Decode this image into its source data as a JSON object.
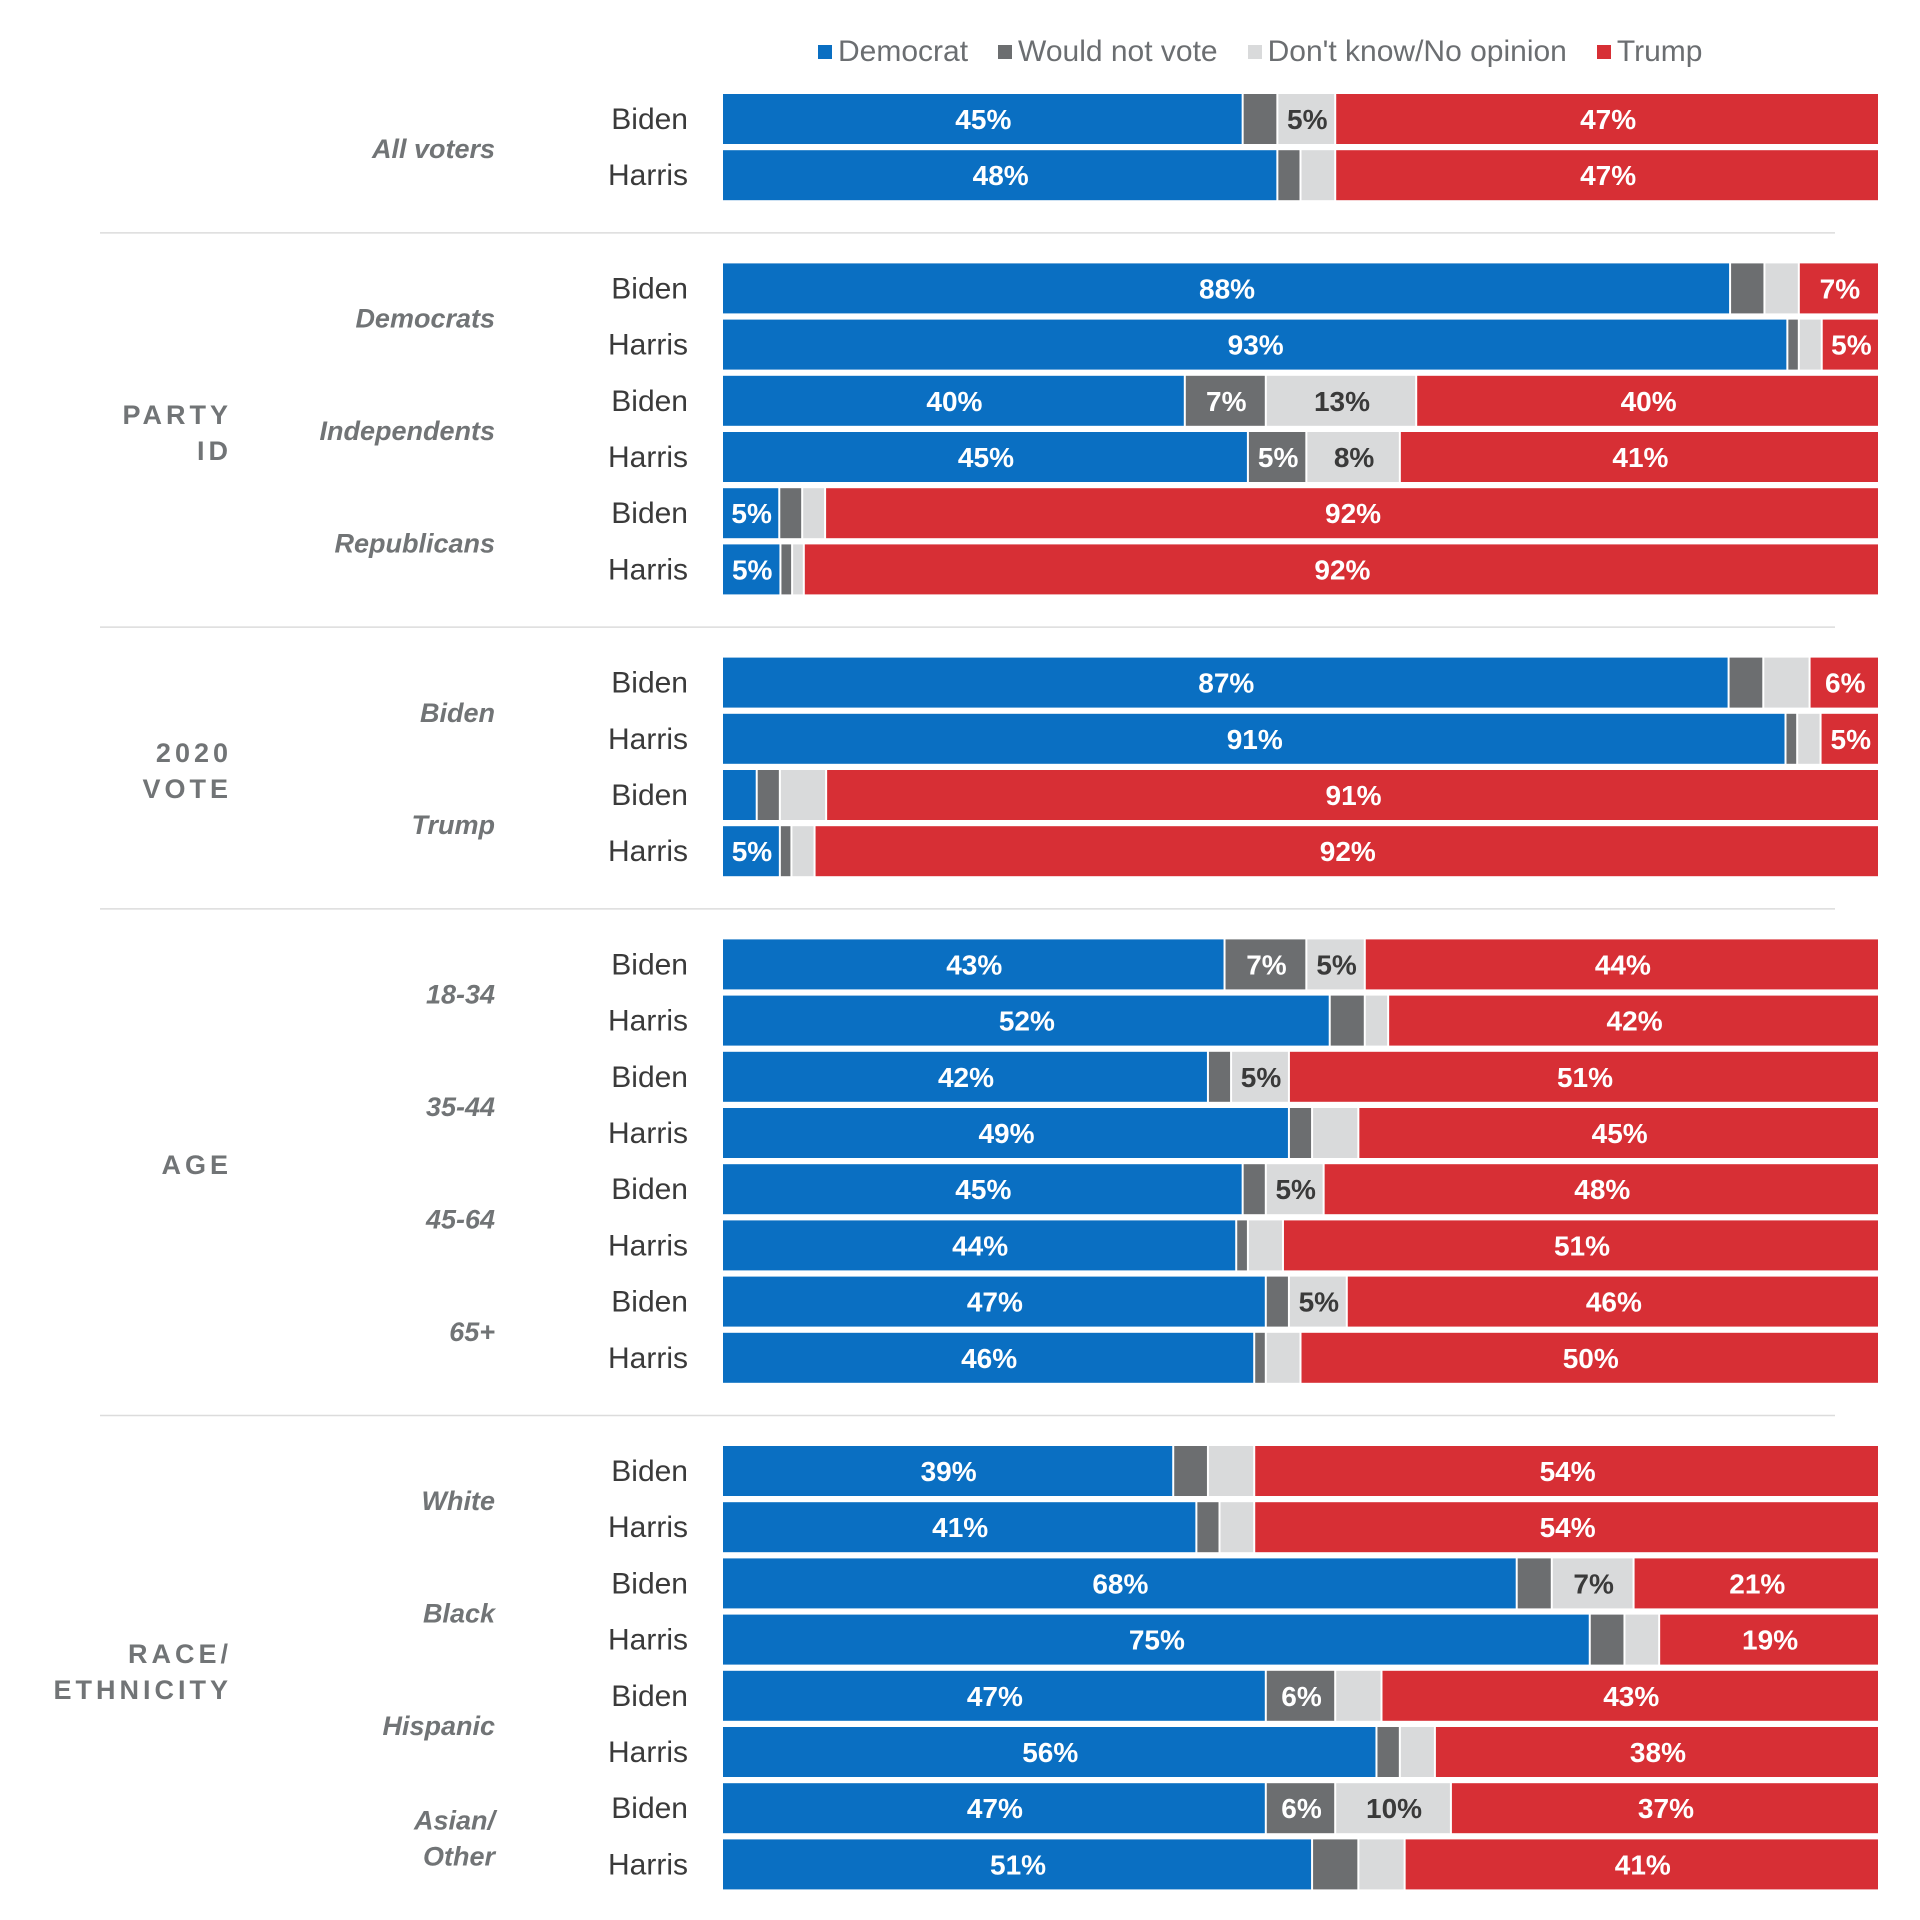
{
  "chart_data": {
    "type": "bar",
    "stacked": true,
    "orientation": "horizontal",
    "xlim": [
      0,
      100
    ],
    "legend_position": "top",
    "series": [
      {
        "key": "dem",
        "name": "Democrat",
        "color": "#0a6fc2"
      },
      {
        "key": "wnv",
        "name": "Would not vote",
        "color": "#6c6e70"
      },
      {
        "key": "dk",
        "name": "Don't know/No opinion",
        "color": "#d9dadb"
      },
      {
        "key": "trump",
        "name": "Trump",
        "color": "#d72f35"
      }
    ],
    "sections": [
      {
        "label": "",
        "groups": [
          {
            "label": "All voters",
            "rows": [
              {
                "candidate": "Biden",
                "dem": 45,
                "wnv": 3,
                "dk": 5,
                "trump": 47,
                "labels": [
                  "45%",
                  "",
                  "5%",
                  "47%"
                ]
              },
              {
                "candidate": "Harris",
                "dem": 48,
                "wnv": 2,
                "dk": 3,
                "trump": 47,
                "labels": [
                  "48%",
                  "",
                  "",
                  "47%"
                ]
              }
            ]
          }
        ]
      },
      {
        "label": "PARTY ID",
        "groups": [
          {
            "label": "Democrats",
            "rows": [
              {
                "candidate": "Biden",
                "dem": 88,
                "wnv": 3,
                "dk": 3,
                "trump": 7,
                "labels": [
                  "88%",
                  "",
                  "",
                  "7%"
                ]
              },
              {
                "candidate": "Harris",
                "dem": 93,
                "wnv": 1,
                "dk": 2,
                "trump": 5,
                "labels": [
                  "93%",
                  "",
                  "",
                  "5%"
                ]
              }
            ]
          },
          {
            "label": "Independents",
            "rows": [
              {
                "candidate": "Biden",
                "dem": 40,
                "wnv": 7,
                "dk": 13,
                "trump": 40,
                "labels": [
                  "40%",
                  "7%",
                  "13%",
                  "40%"
                ]
              },
              {
                "candidate": "Harris",
                "dem": 45,
                "wnv": 5,
                "dk": 8,
                "trump": 41,
                "labels": [
                  "45%",
                  "5%",
                  "8%",
                  "41%"
                ]
              }
            ]
          },
          {
            "label": "Republicans",
            "rows": [
              {
                "candidate": "Biden",
                "dem": 5,
                "wnv": 2,
                "dk": 2,
                "trump": 92,
                "labels": [
                  "5%",
                  "",
                  "",
                  "92%"
                ]
              },
              {
                "candidate": "Harris",
                "dem": 5,
                "wnv": 1,
                "dk": 1,
                "trump": 92,
                "labels": [
                  "5%",
                  "",
                  "",
                  "92%"
                ]
              }
            ]
          }
        ]
      },
      {
        "label": "2020 VOTE",
        "groups": [
          {
            "label": "Biden",
            "rows": [
              {
                "candidate": "Biden",
                "dem": 87,
                "wnv": 3,
                "dk": 4,
                "trump": 6,
                "labels": [
                  "87%",
                  "",
                  "",
                  "6%"
                ]
              },
              {
                "candidate": "Harris",
                "dem": 91,
                "wnv": 1,
                "dk": 2,
                "trump": 5,
                "labels": [
                  "91%",
                  "",
                  "",
                  "5%"
                ]
              }
            ]
          },
          {
            "label": "Trump",
            "rows": [
              {
                "candidate": "Biden",
                "dem": 3,
                "wnv": 2,
                "dk": 4,
                "trump": 91,
                "labels": [
                  "",
                  "",
                  "",
                  "91%"
                ]
              },
              {
                "candidate": "Harris",
                "dem": 5,
                "wnv": 1,
                "dk": 2,
                "trump": 92,
                "labels": [
                  "5%",
                  "",
                  "",
                  "92%"
                ]
              }
            ]
          }
        ]
      },
      {
        "label": "AGE",
        "groups": [
          {
            "label": "18-34",
            "rows": [
              {
                "candidate": "Biden",
                "dem": 43,
                "wnv": 7,
                "dk": 5,
                "trump": 44,
                "labels": [
                  "43%",
                  "7%",
                  "5%",
                  "44%"
                ]
              },
              {
                "candidate": "Harris",
                "dem": 52,
                "wnv": 3,
                "dk": 2,
                "trump": 42,
                "labels": [
                  "52%",
                  "",
                  "",
                  "42%"
                ]
              }
            ]
          },
          {
            "label": "35-44",
            "rows": [
              {
                "candidate": "Biden",
                "dem": 42,
                "wnv": 2,
                "dk": 5,
                "trump": 51,
                "labels": [
                  "42%",
                  "",
                  "5%",
                  "51%"
                ]
              },
              {
                "candidate": "Harris",
                "dem": 49,
                "wnv": 2,
                "dk": 4,
                "trump": 45,
                "labels": [
                  "49%",
                  "",
                  "",
                  "45%"
                ]
              }
            ]
          },
          {
            "label": "45-64",
            "rows": [
              {
                "candidate": "Biden",
                "dem": 45,
                "wnv": 2,
                "dk": 5,
                "trump": 48,
                "labels": [
                  "45%",
                  "",
                  "5%",
                  "48%"
                ]
              },
              {
                "candidate": "Harris",
                "dem": 44,
                "wnv": 1,
                "dk": 3,
                "trump": 51,
                "labels": [
                  "44%",
                  "",
                  "",
                  "51%"
                ]
              }
            ]
          },
          {
            "label": "65+",
            "rows": [
              {
                "candidate": "Biden",
                "dem": 47,
                "wnv": 2,
                "dk": 5,
                "trump": 46,
                "labels": [
                  "47%",
                  "",
                  "5%",
                  "46%"
                ]
              },
              {
                "candidate": "Harris",
                "dem": 46,
                "wnv": 1,
                "dk": 3,
                "trump": 50,
                "labels": [
                  "46%",
                  "",
                  "",
                  "50%"
                ]
              }
            ]
          }
        ]
      },
      {
        "label": "RACE/ ETHNICITY",
        "groups": [
          {
            "label": "White",
            "rows": [
              {
                "candidate": "Biden",
                "dem": 39,
                "wnv": 3,
                "dk": 4,
                "trump": 54,
                "labels": [
                  "39%",
                  "",
                  "",
                  "54%"
                ]
              },
              {
                "candidate": "Harris",
                "dem": 41,
                "wnv": 2,
                "dk": 3,
                "trump": 54,
                "labels": [
                  "41%",
                  "",
                  "",
                  "54%"
                ]
              }
            ]
          },
          {
            "label": "Black",
            "rows": [
              {
                "candidate": "Biden",
                "dem": 68,
                "wnv": 3,
                "dk": 7,
                "trump": 21,
                "labels": [
                  "68%",
                  "",
                  "7%",
                  "21%"
                ]
              },
              {
                "candidate": "Harris",
                "dem": 75,
                "wnv": 3,
                "dk": 3,
                "trump": 19,
                "labels": [
                  "75%",
                  "",
                  "",
                  "19%"
                ]
              }
            ]
          },
          {
            "label": "Hispanic",
            "rows": [
              {
                "candidate": "Biden",
                "dem": 47,
                "wnv": 6,
                "dk": 4,
                "trump": 43,
                "labels": [
                  "47%",
                  "6%",
                  "",
                  "43%"
                ]
              },
              {
                "candidate": "Harris",
                "dem": 56,
                "wnv": 2,
                "dk": 3,
                "trump": 38,
                "labels": [
                  "56%",
                  "",
                  "",
                  "38%"
                ]
              }
            ]
          },
          {
            "label": "Asian/ Other",
            "rows": [
              {
                "candidate": "Biden",
                "dem": 47,
                "wnv": 6,
                "dk": 10,
                "trump": 37,
                "labels": [
                  "47%",
                  "6%",
                  "10%",
                  "37%"
                ]
              },
              {
                "candidate": "Harris",
                "dem": 51,
                "wnv": 4,
                "dk": 4,
                "trump": 41,
                "labels": [
                  "51%",
                  "",
                  "",
                  "41%"
                ]
              }
            ]
          }
        ]
      }
    ]
  }
}
